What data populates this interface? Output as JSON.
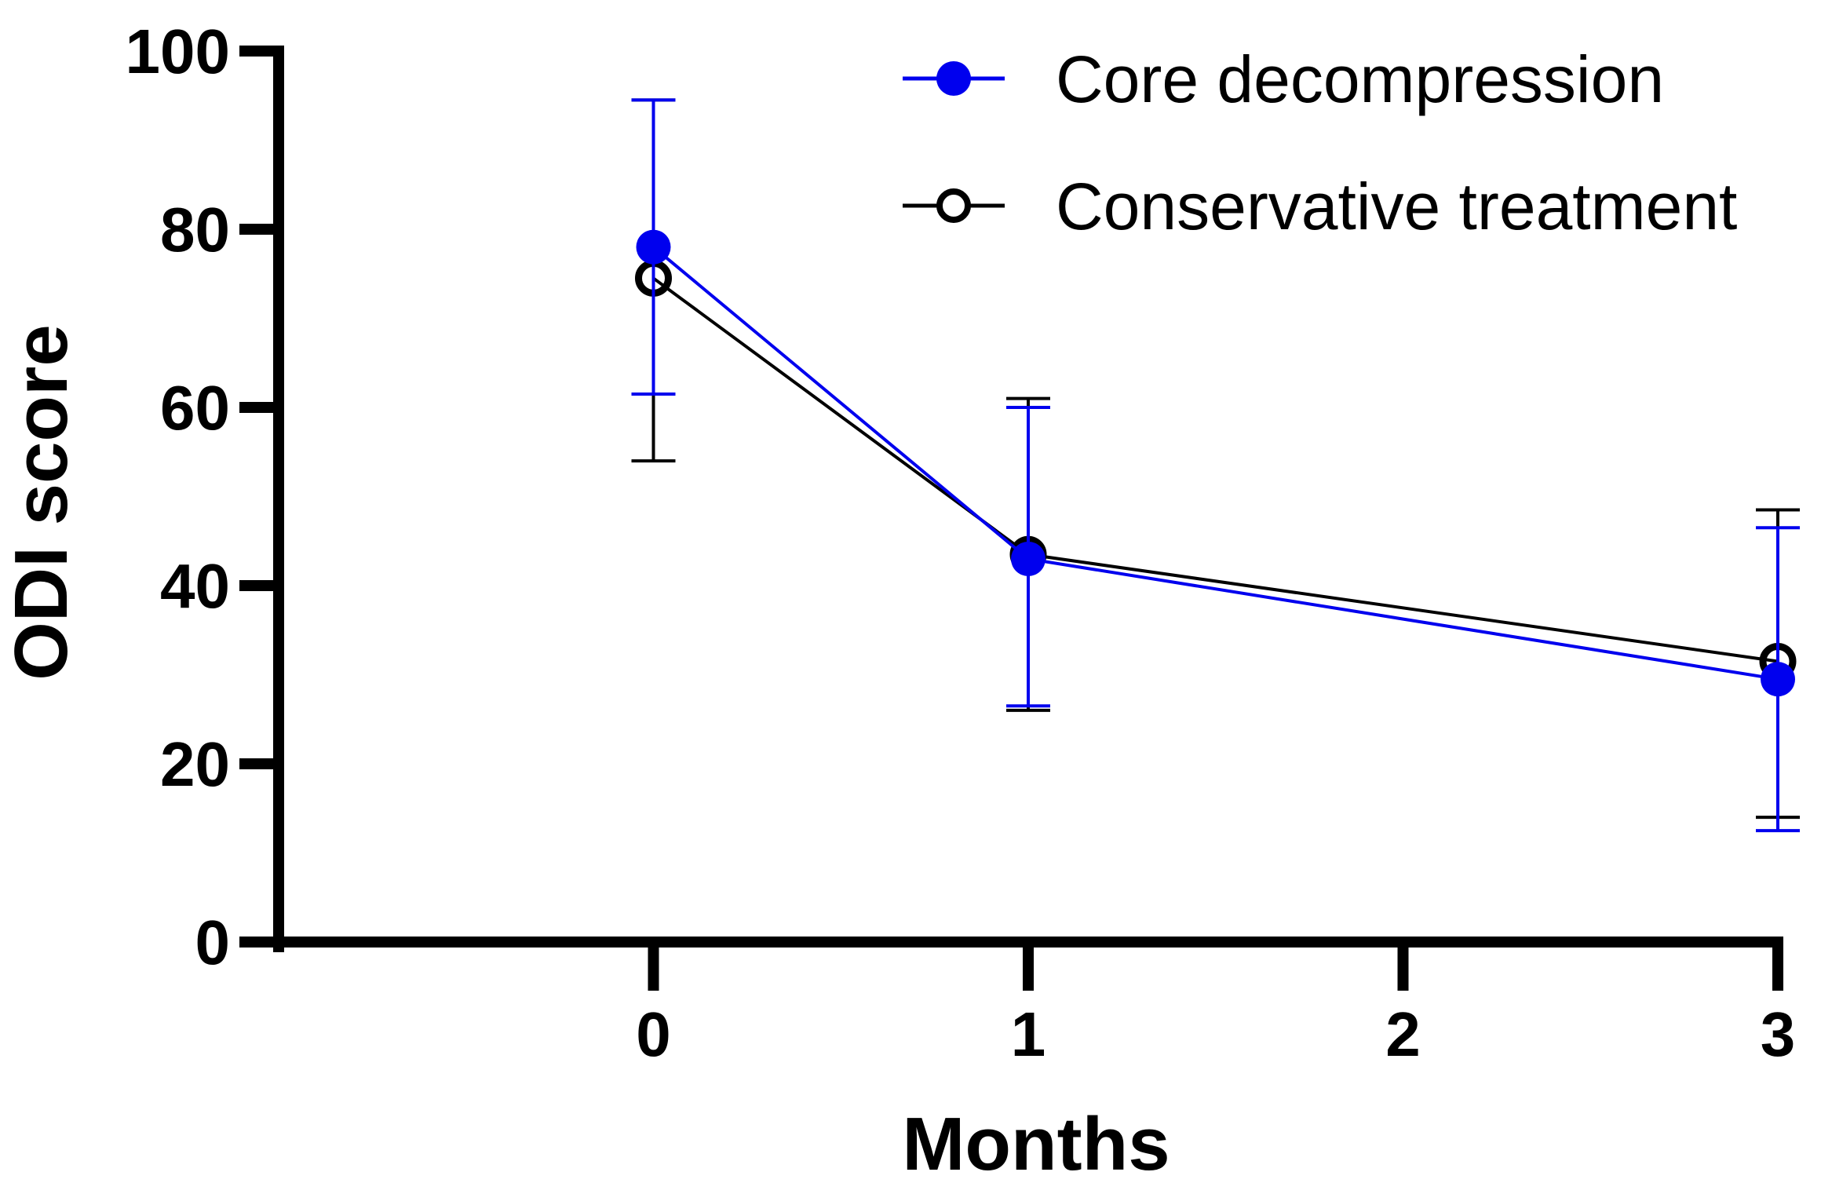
{
  "chart_data": {
    "type": "line",
    "title": "",
    "xlabel": "Months",
    "ylabel": "ODI score",
    "x": [
      0,
      1,
      3
    ],
    "xticks": [
      "0",
      "1",
      "2",
      "3"
    ],
    "xlim": [
      -1.0,
      3
    ],
    "ylim": [
      0,
      100
    ],
    "yticks": [
      "0",
      "20",
      "40",
      "60",
      "80",
      "100"
    ],
    "grid": false,
    "legend_position": "top-right",
    "series": [
      {
        "name": "Core decompression",
        "color": "#0000ee",
        "marker": "filled-circle",
        "values": [
          78,
          43,
          29.5
        ],
        "error_low": [
          61.5,
          26.5,
          12.5
        ],
        "error_high": [
          94.5,
          60,
          46.5
        ]
      },
      {
        "name": "Conservative treatment",
        "color": "#000000",
        "marker": "open-circle",
        "values": [
          74.5,
          43.5,
          31.5
        ],
        "error_low": [
          54,
          26,
          14
        ],
        "error_high": [
          94.5,
          61,
          48.5
        ]
      }
    ]
  }
}
